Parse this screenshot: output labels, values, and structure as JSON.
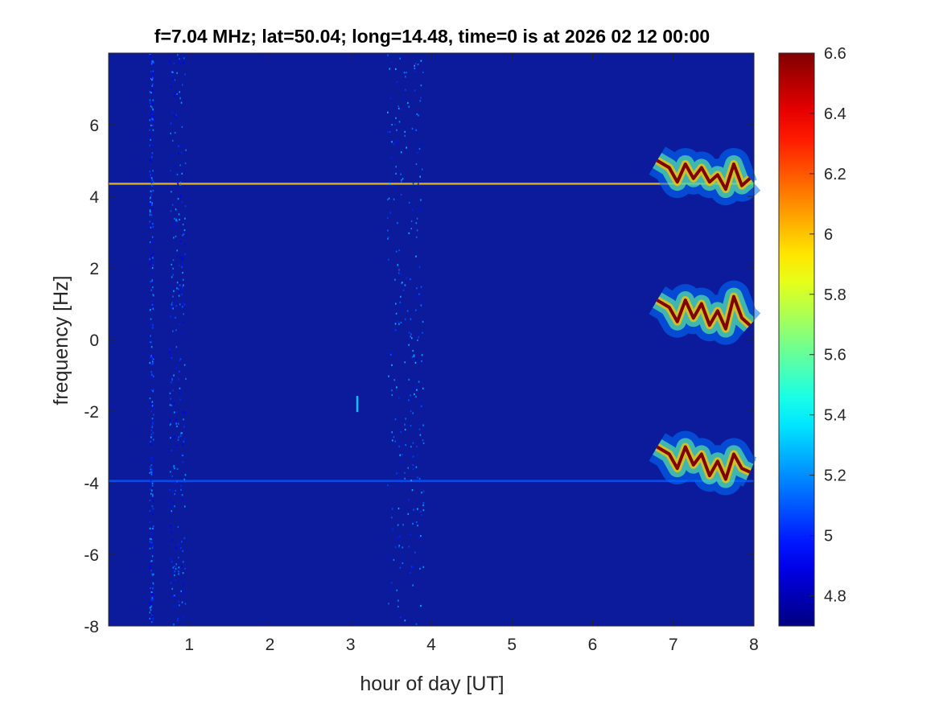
{
  "chart_data": {
    "type": "heatmap",
    "title": "f=7.04 MHz;  lat=50.04; long=14.48, time=0 is at 2026 02 12 00:00",
    "xlabel": "hour of day [UT]",
    "ylabel": "frequency [Hz]",
    "xlim": [
      0,
      8
    ],
    "ylim": [
      -8,
      8
    ],
    "x_ticks": [
      1,
      2,
      3,
      4,
      5,
      6,
      7,
      8
    ],
    "x_tick_labels": [
      "1",
      "2",
      "3",
      "4",
      "5",
      "6",
      "7",
      "8"
    ],
    "y_ticks": [
      -8,
      -6,
      -4,
      -2,
      0,
      2,
      4,
      6
    ],
    "y_tick_labels": [
      "-8",
      "-6",
      "-4",
      "-2",
      "0",
      "2",
      "4",
      "6"
    ],
    "colorbar": {
      "colormap": "jet",
      "clim": [
        4.7,
        6.6
      ],
      "ticks": [
        4.8,
        5.0,
        5.2,
        5.4,
        5.6,
        5.8,
        6.0,
        6.2,
        6.4,
        6.6
      ],
      "tick_labels": [
        "4.8",
        "5",
        "5.2",
        "5.4",
        "5.6",
        "5.8",
        "6",
        "6.2",
        "6.4",
        "6.6"
      ]
    },
    "background_color": "#0c1a9c",
    "features": [
      {
        "kind": "horizontal_line",
        "freq_hz": 4.35,
        "x_range": [
          0,
          8
        ],
        "level": 6.0
      },
      {
        "kind": "horizontal_line",
        "freq_hz": -3.95,
        "x_range": [
          0,
          8
        ],
        "level": 5.1
      },
      {
        "kind": "noise_band",
        "x_range": [
          3.45,
          3.9
        ],
        "level": 4.95
      },
      {
        "kind": "noise_band",
        "x_range": [
          0.75,
          0.95
        ],
        "level": 4.9
      },
      {
        "kind": "noise_band",
        "x_range": [
          0.5,
          0.55
        ],
        "level": 4.9
      },
      {
        "kind": "spot",
        "x": 3.08,
        "freq_hz": -1.8,
        "level": 5.3
      },
      {
        "kind": "doppler_trace",
        "name": "",
        "x": [
          6.8,
          6.95,
          7.05,
          7.15,
          7.25,
          7.35,
          7.45,
          7.55,
          7.65,
          7.75,
          7.85,
          7.95
        ],
        "y": [
          5.0,
          4.8,
          4.4,
          4.9,
          4.5,
          4.8,
          4.4,
          4.6,
          4.2,
          4.9,
          4.3,
          4.5
        ],
        "peak": 6.6
      },
      {
        "kind": "doppler_trace",
        "name": "",
        "x": [
          6.8,
          6.95,
          7.05,
          7.15,
          7.25,
          7.35,
          7.45,
          7.55,
          7.65,
          7.75,
          7.85,
          7.95
        ],
        "y": [
          1.1,
          0.9,
          0.5,
          1.1,
          0.6,
          1.0,
          0.4,
          0.8,
          0.3,
          1.2,
          0.6,
          0.4
        ],
        "peak": 6.6
      },
      {
        "kind": "doppler_trace",
        "name": "",
        "x": [
          6.8,
          6.95,
          7.05,
          7.15,
          7.25,
          7.35,
          7.45,
          7.55,
          7.65,
          7.75,
          7.85,
          7.95
        ],
        "y": [
          -3.0,
          -3.2,
          -3.6,
          -3.0,
          -3.5,
          -3.2,
          -3.8,
          -3.4,
          -3.9,
          -3.2,
          -3.6,
          -3.7
        ],
        "peak": 6.6
      }
    ]
  }
}
